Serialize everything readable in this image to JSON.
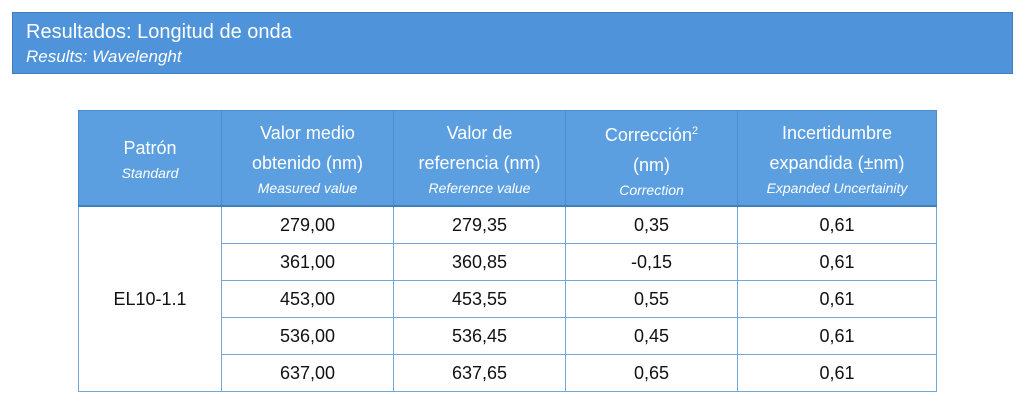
{
  "header": {
    "title": "Resultados: Longitud de onda",
    "subtitle": "Results: Wavelenght"
  },
  "table": {
    "columns": [
      {
        "lines": [
          "Patrón"
        ],
        "sublabel": "Standard"
      },
      {
        "lines": [
          "Valor medio",
          "obtenido (nm)"
        ],
        "sublabel": "Measured value"
      },
      {
        "lines": [
          "Valor de",
          "referencia (nm)"
        ],
        "sublabel": "Reference value"
      },
      {
        "lines": [
          "Corrección",
          "(nm)"
        ],
        "superscript": "2",
        "sublabel": "Correction"
      },
      {
        "lines": [
          "Incertidumbre",
          "expandida (±nm)"
        ],
        "sublabel": "Expanded Uncertainity"
      }
    ],
    "standard": "EL10-1.1",
    "rows": [
      [
        "279,00",
        "279,35",
        "0,35",
        "0,61"
      ],
      [
        "361,00",
        "360,85",
        "-0,15",
        "0,61"
      ],
      [
        "453,00",
        "453,55",
        "0,55",
        "0,61"
      ],
      [
        "536,00",
        "536,45",
        "0,45",
        "0,61"
      ],
      [
        "637,00",
        "637,65",
        "0,65",
        "0,61"
      ]
    ]
  }
}
